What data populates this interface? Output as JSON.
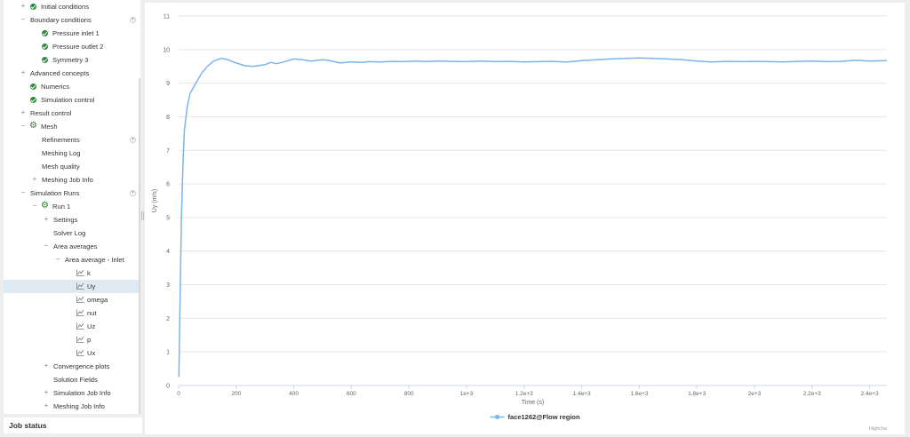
{
  "tree": {
    "items": [
      {
        "label": "Initial conditions",
        "indent": 0,
        "toggle": "+",
        "icon": "check",
        "menu": false,
        "selected": false
      },
      {
        "label": "Boundary conditions",
        "indent": 0,
        "toggle": "-",
        "icon": "none",
        "menu": true,
        "selected": false
      },
      {
        "label": "Pressure inlet 1",
        "indent": 1,
        "toggle": "",
        "icon": "check",
        "menu": false,
        "selected": false
      },
      {
        "label": "Pressure outlet 2",
        "indent": 1,
        "toggle": "",
        "icon": "check",
        "menu": false,
        "selected": false
      },
      {
        "label": "Symmetry 3",
        "indent": 1,
        "toggle": "",
        "icon": "check",
        "menu": false,
        "selected": false
      },
      {
        "label": "Advanced concepts",
        "indent": 0,
        "toggle": "+",
        "icon": "none",
        "menu": false,
        "selected": false
      },
      {
        "label": "Numerics",
        "indent": 0,
        "toggle": "",
        "icon": "check",
        "menu": false,
        "selected": false
      },
      {
        "label": "Simulation control",
        "indent": 0,
        "toggle": "",
        "icon": "check",
        "menu": false,
        "selected": false
      },
      {
        "label": "Result control",
        "indent": 0,
        "toggle": "+",
        "icon": "none",
        "menu": false,
        "selected": false
      },
      {
        "label": "Mesh",
        "indent": 0,
        "toggle": "-",
        "icon": "gear",
        "menu": false,
        "selected": false
      },
      {
        "label": "Refinements",
        "indent": 1,
        "toggle": "",
        "icon": "none",
        "menu": true,
        "selected": false
      },
      {
        "label": "Meshing Log",
        "indent": 1,
        "toggle": "",
        "icon": "none",
        "menu": false,
        "selected": false
      },
      {
        "label": "Mesh quality",
        "indent": 1,
        "toggle": "",
        "icon": "none",
        "menu": false,
        "selected": false
      },
      {
        "label": "Meshing Job Info",
        "indent": 1,
        "toggle": "+",
        "icon": "none",
        "menu": false,
        "selected": false
      },
      {
        "label": "Simulation Runs",
        "indent": 0,
        "toggle": "-",
        "icon": "none",
        "menu": true,
        "selected": false
      },
      {
        "label": "Run 1",
        "indent": 1,
        "toggle": "-",
        "icon": "gear",
        "menu": false,
        "selected": false
      },
      {
        "label": "Settings",
        "indent": 2,
        "toggle": "+",
        "icon": "none",
        "menu": false,
        "selected": false
      },
      {
        "label": "Solver Log",
        "indent": 2,
        "toggle": "",
        "icon": "none",
        "menu": false,
        "selected": false
      },
      {
        "label": "Area averages",
        "indent": 2,
        "toggle": "-",
        "icon": "none",
        "menu": false,
        "selected": false
      },
      {
        "label": "Area average - Inlet",
        "indent": 3,
        "toggle": "-",
        "icon": "none",
        "menu": false,
        "selected": false
      },
      {
        "label": "k",
        "indent": 4,
        "toggle": "",
        "icon": "chart",
        "menu": false,
        "selected": false
      },
      {
        "label": "Uy",
        "indent": 4,
        "toggle": "",
        "icon": "chart",
        "menu": false,
        "selected": true
      },
      {
        "label": "omega",
        "indent": 4,
        "toggle": "",
        "icon": "chart",
        "menu": false,
        "selected": false
      },
      {
        "label": "nut",
        "indent": 4,
        "toggle": "",
        "icon": "chart",
        "menu": false,
        "selected": false
      },
      {
        "label": "Uz",
        "indent": 4,
        "toggle": "",
        "icon": "chart",
        "menu": false,
        "selected": false
      },
      {
        "label": "p",
        "indent": 4,
        "toggle": "",
        "icon": "chart",
        "menu": false,
        "selected": false
      },
      {
        "label": "Ux",
        "indent": 4,
        "toggle": "",
        "icon": "chart",
        "menu": false,
        "selected": false
      },
      {
        "label": "Convergence plots",
        "indent": 2,
        "toggle": "+",
        "icon": "none",
        "menu": false,
        "selected": false
      },
      {
        "label": "Solution Fields",
        "indent": 2,
        "toggle": "",
        "icon": "none",
        "menu": false,
        "selected": false
      },
      {
        "label": "Simulation Job Info",
        "indent": 2,
        "toggle": "+",
        "icon": "none",
        "menu": false,
        "selected": false
      },
      {
        "label": "Meshing Job Info",
        "indent": 2,
        "toggle": "+",
        "icon": "none",
        "menu": false,
        "selected": false
      }
    ]
  },
  "job_status": {
    "title": "Job status"
  },
  "colors": {
    "accent": "#2e8b3d",
    "series": "#7cb5ec",
    "selected_row": "#dfeaf3"
  },
  "chart_data": {
    "type": "line",
    "xlabel": "Time (s)",
    "ylabel": "Uy (m/s)",
    "xlim": [
      0,
      2460
    ],
    "ylim": [
      0,
      11
    ],
    "x_ticks": [
      0,
      200,
      400,
      600,
      800,
      1000,
      1200,
      1400,
      1600,
      1800,
      2000,
      2200,
      2400
    ],
    "x_tick_labels": [
      "0",
      "200",
      "400",
      "600",
      "800",
      "1e+3",
      "1.2e+3",
      "1.4e+3",
      "1.6e+3",
      "1.8e+3",
      "2e+3",
      "2.2e+3",
      "2.4e+3"
    ],
    "y_ticks": [
      0,
      1,
      2,
      3,
      4,
      5,
      6,
      7,
      8,
      9,
      10,
      11
    ],
    "grid": true,
    "legend": "bottom-center",
    "credits": "Highcha",
    "series": [
      {
        "name": "face1262@Flow region",
        "color": "#7cb5ec",
        "x": [
          1,
          5,
          10,
          15,
          20,
          30,
          40,
          60,
          80,
          100,
          120,
          140,
          150,
          170,
          200,
          230,
          260,
          300,
          320,
          340,
          360,
          400,
          430,
          460,
          500,
          520,
          560,
          600,
          640,
          660,
          700,
          740,
          780,
          820,
          860,
          900,
          950,
          1000,
          1050,
          1100,
          1150,
          1200,
          1250,
          1300,
          1350,
          1400,
          1450,
          1500,
          1550,
          1600,
          1650,
          1700,
          1750,
          1800,
          1850,
          1900,
          1950,
          2000,
          2050,
          2100,
          2150,
          2200,
          2250,
          2300,
          2350,
          2400,
          2460
        ],
        "y": [
          0.25,
          2.5,
          5.0,
          6.6,
          7.6,
          8.3,
          8.7,
          9.0,
          9.3,
          9.5,
          9.65,
          9.72,
          9.74,
          9.7,
          9.6,
          9.52,
          9.5,
          9.55,
          9.62,
          9.58,
          9.62,
          9.72,
          9.7,
          9.66,
          9.7,
          9.68,
          9.6,
          9.63,
          9.62,
          9.64,
          9.63,
          9.65,
          9.64,
          9.66,
          9.64,
          9.66,
          9.65,
          9.64,
          9.66,
          9.64,
          9.65,
          9.63,
          9.64,
          9.65,
          9.63,
          9.67,
          9.7,
          9.72,
          9.74,
          9.75,
          9.74,
          9.72,
          9.7,
          9.66,
          9.63,
          9.65,
          9.64,
          9.65,
          9.64,
          9.63,
          9.65,
          9.66,
          9.64,
          9.65,
          9.68,
          9.66,
          9.67
        ]
      }
    ]
  }
}
